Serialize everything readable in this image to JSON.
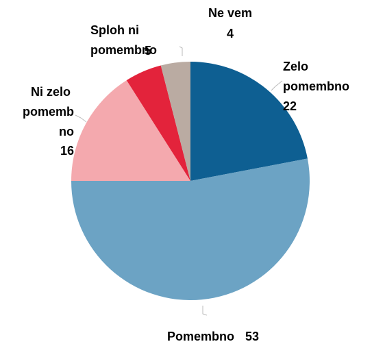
{
  "chart_data": {
    "type": "pie",
    "categories": [
      "Zelo pomembno",
      "Pomembno",
      "Ni zelo pomembno",
      "Sploh ni pomembno",
      "Ne vem"
    ],
    "values": [
      22,
      53,
      16,
      5,
      4
    ],
    "colors": [
      "#0e5f92",
      "#6ca3c4",
      "#f4a9ae",
      "#e3233b",
      "#baaba2"
    ]
  }
}
